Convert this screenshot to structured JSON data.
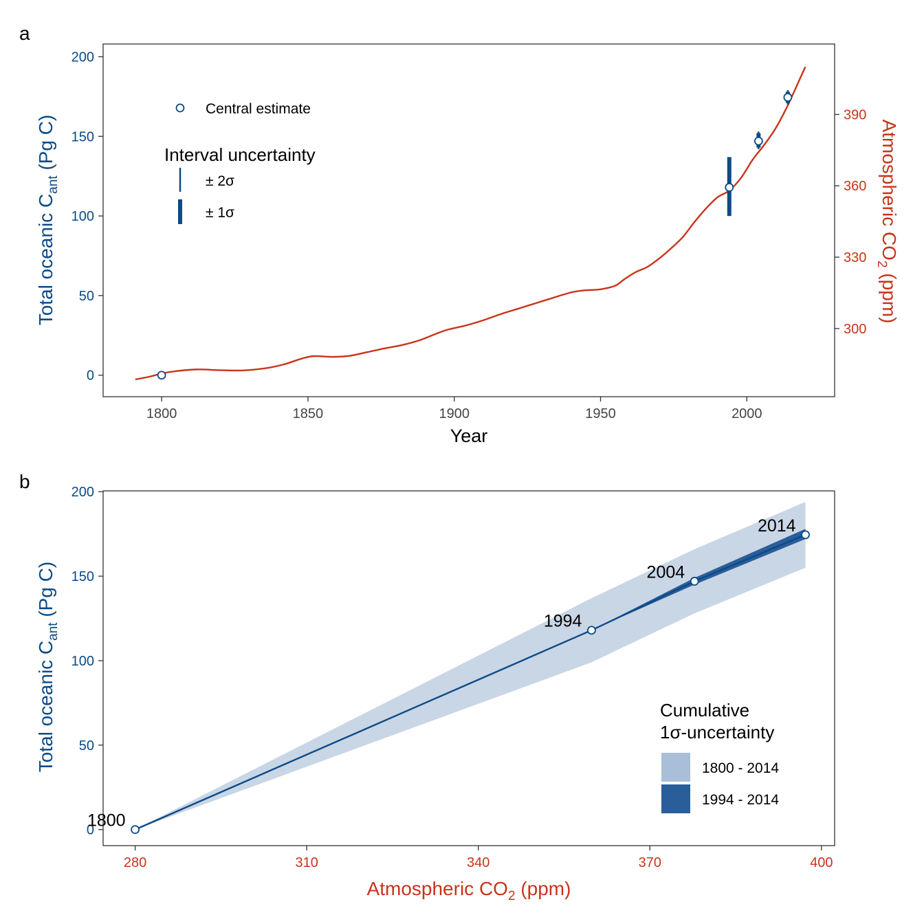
{
  "colors": {
    "blue": "#0B4A86",
    "red": "#C8341A",
    "band_light": "#C9D6E6",
    "band_dark": "#2A5E9A",
    "legend_light": "#A9BFD9",
    "legend_dark": "#2A5E9A",
    "frame": "#333333",
    "text": "#000000"
  },
  "chart_data": [
    {
      "panel_label": "a",
      "type": "line",
      "xlabel": "Year",
      "ylabel_left": {
        "main": "Total oceanic C",
        "sub": "ant",
        "unit": " (Pg C)"
      },
      "ylabel_right": {
        "main": "Atmospheric CO",
        "sub": "2",
        "unit": " (ppm)"
      },
      "xlim": [
        1780,
        2030
      ],
      "ylim_left": [
        -13.5,
        208
      ],
      "ylim_right": [
        271.35,
        419.6
      ],
      "x_ticks": [
        1800,
        1850,
        1900,
        1950,
        2000
      ],
      "y_ticks_left": [
        0,
        50,
        100,
        150,
        200
      ],
      "y_ticks_right": [
        300,
        330,
        360,
        390
      ],
      "co2_series": {
        "axis": "right",
        "x": [
          1791,
          1796,
          1800,
          1805,
          1812,
          1820,
          1828,
          1836,
          1842,
          1848,
          1852,
          1858,
          1864,
          1870,
          1876,
          1882,
          1888,
          1894,
          1898,
          1904,
          1910,
          1916,
          1922,
          1928,
          1934,
          1940,
          1944,
          1950,
          1955,
          1958,
          1962,
          1966,
          1970,
          1974,
          1978,
          1982,
          1986,
          1990,
          1994,
          1998,
          2002,
          2006,
          2010,
          2014,
          2018,
          2020
        ],
        "y": [
          278.6,
          279.8,
          281.1,
          282.1,
          282.8,
          282.5,
          282.4,
          283.4,
          285.0,
          287.4,
          288.4,
          288.1,
          288.5,
          290.0,
          291.6,
          293.0,
          295.0,
          297.9,
          299.6,
          301.3,
          303.5,
          306.1,
          308.4,
          310.7,
          313.0,
          315.2,
          316.0,
          316.5,
          318.0,
          320.6,
          323.7,
          325.9,
          329.4,
          333.6,
          338.3,
          344.6,
          350.4,
          355.2,
          358.0,
          363.3,
          371.0,
          377.3,
          384.5,
          393.8,
          404.6,
          410.0
        ]
      },
      "estimates": [
        {
          "year": 1800,
          "value": 0,
          "sd1": null,
          "sd2": null
        },
        {
          "year": 1994,
          "value": 118,
          "sd1": [
            100,
            137
          ],
          "sd2": [
            100,
            137
          ]
        },
        {
          "year": 2004,
          "value": 147,
          "sd1": [
            143,
            152
          ],
          "sd2": [
            142,
            153
          ]
        },
        {
          "year": 2014,
          "value": 174.5,
          "sd1": [
            171,
            178
          ],
          "sd2": [
            170,
            179
          ]
        }
      ],
      "legend": {
        "central_label": "Central estimate",
        "interval_title": "Interval uncertainty",
        "sd2_label": "± 2σ",
        "sd1_label": "± 1σ"
      }
    },
    {
      "panel_label": "b",
      "type": "line",
      "xlabel": {
        "main": "Atmospheric CO",
        "sub": "2",
        "unit": " (ppm)"
      },
      "ylabel": {
        "main": "Total oceanic C",
        "sub": "ant",
        "unit": " (Pg C)"
      },
      "xlim": [
        274.4,
        402.3
      ],
      "ylim": [
        -9.5,
        200.5
      ],
      "x_ticks": [
        280,
        310,
        340,
        370,
        400
      ],
      "y_ticks": [
        0,
        50,
        100,
        150,
        200
      ],
      "points": [
        {
          "label": "1800",
          "x": 280,
          "y": 0
        },
        {
          "label": "1994",
          "x": 359.8,
          "y": 118
        },
        {
          "label": "2004",
          "x": 377.8,
          "y": 147
        },
        {
          "label": "2014",
          "x": 397.2,
          "y": 174.5
        }
      ],
      "band_1800_2014": {
        "x": [
          280,
          359.8,
          377.8,
          397.2
        ],
        "upper": [
          0,
          137,
          166,
          194
        ],
        "lower": [
          0,
          99,
          128,
          155
        ]
      },
      "band_1994_2014": {
        "x": [
          359.8,
          377.8,
          397.2
        ],
        "upper": [
          118,
          149,
          178
        ],
        "lower": [
          118,
          145,
          172
        ]
      },
      "legend": {
        "title_line1": "Cumulative",
        "title_line2": "1σ-uncertainty",
        "items": [
          "1800 - 2014",
          "1994 - 2014"
        ]
      }
    }
  ]
}
